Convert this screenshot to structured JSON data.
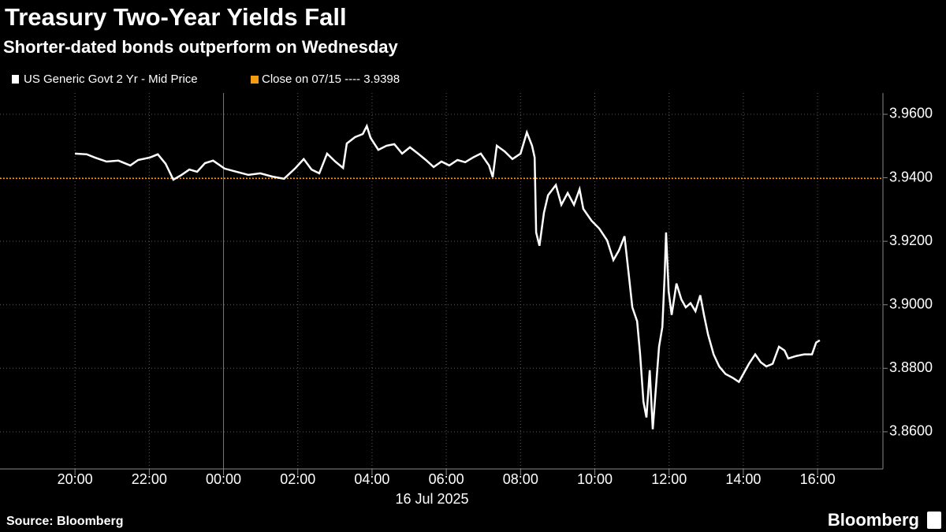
{
  "chart_data": {
    "type": "line",
    "title": "Treasury Two-Year Yields Fall",
    "subtitle": "Shorter-dated bonds outperform on Wednesday",
    "x_label": "16 Jul 2025",
    "source": "Source: Bloomberg",
    "brand": "Bloomberg",
    "grid": true,
    "x": [
      -4.0,
      -3.68,
      -3.47,
      -3.15,
      -2.83,
      -2.51,
      -2.3,
      -1.98,
      -1.77,
      -1.56,
      -1.35,
      -1.13,
      -0.92,
      -0.71,
      -0.5,
      -0.28,
      0.03,
      0.35,
      0.67,
      0.99,
      1.31,
      1.63,
      1.94,
      2.16,
      2.37,
      2.58,
      2.79,
      3.01,
      3.22,
      3.32,
      3.54,
      3.75,
      3.86,
      3.96,
      4.17,
      4.39,
      4.6,
      4.81,
      5.02,
      5.24,
      5.45,
      5.66,
      5.87,
      6.08,
      6.3,
      6.51,
      6.72,
      6.93,
      7.15,
      7.25,
      7.36,
      7.57,
      7.78,
      8.0,
      8.17,
      8.31,
      8.38,
      8.42,
      8.51,
      8.63,
      8.74,
      8.95,
      9.1,
      9.27,
      9.44,
      9.59,
      9.69,
      9.91,
      10.12,
      10.33,
      10.5,
      10.65,
      10.8,
      10.93,
      11.01,
      11.14,
      11.22,
      11.31,
      11.39,
      11.48,
      11.56,
      11.65,
      11.73,
      11.82,
      11.88,
      11.92,
      11.99,
      12.07,
      12.2,
      12.33,
      12.45,
      12.58,
      12.71,
      12.84,
      12.94,
      13.05,
      13.2,
      13.35,
      13.52,
      13.73,
      13.88,
      14.0,
      14.15,
      14.32,
      14.47,
      14.62,
      14.79,
      14.96,
      15.11,
      15.21,
      15.43,
      15.64,
      15.85,
      15.96,
      16.06
    ],
    "series": [
      {
        "name": "US Generic Govt 2 Yr - Mid Price",
        "color": "#ffffff",
        "values": [
          3.9476,
          3.9474,
          3.9464,
          3.9451,
          3.9454,
          3.9439,
          3.9456,
          3.9464,
          3.9474,
          3.9444,
          3.9394,
          3.9409,
          3.9426,
          3.9419,
          3.9446,
          3.9454,
          3.9429,
          3.9419,
          3.9409,
          3.9414,
          3.9404,
          3.9397,
          3.9431,
          3.9459,
          3.9426,
          3.9414,
          3.9476,
          3.9451,
          3.9431,
          3.9508,
          3.9528,
          3.9538,
          3.9563,
          3.9526,
          3.9488,
          3.9501,
          3.9506,
          3.9476,
          3.9496,
          3.9476,
          3.9456,
          3.9434,
          3.9451,
          3.9439,
          3.9456,
          3.9449,
          3.9464,
          3.9476,
          3.9439,
          3.9402,
          3.9501,
          3.9483,
          3.9459,
          3.9476,
          3.9543,
          3.9501,
          3.9464,
          3.9228,
          3.9186,
          3.929,
          3.9345,
          3.9377,
          3.9315,
          3.9352,
          3.9315,
          3.9364,
          3.9302,
          3.9265,
          3.924,
          3.9203,
          3.9141,
          3.9171,
          3.9216,
          3.9079,
          3.8992,
          3.8948,
          3.8844,
          3.8695,
          3.8645,
          3.8794,
          3.8608,
          3.8744,
          3.8868,
          3.893,
          3.9092,
          3.9228,
          3.9042,
          3.8968,
          3.9067,
          3.9017,
          3.8992,
          3.9005,
          3.898,
          3.903,
          3.8968,
          3.8906,
          3.8844,
          3.8806,
          3.8782,
          3.8769,
          3.8757,
          3.8782,
          3.8814,
          3.8844,
          3.8819,
          3.8806,
          3.8814,
          3.8868,
          3.8856,
          3.8831,
          3.8839,
          3.8844,
          3.8844,
          3.8881,
          3.8888
        ]
      }
    ],
    "reference_line": {
      "label": "Close on 07/15 ---- 3.9398",
      "value": 3.9398,
      "color": "#f39c12"
    },
    "xlim": [
      -6.02,
      17.76
    ],
    "xticks": [
      {
        "value": -4,
        "label": "20:00"
      },
      {
        "value": -2,
        "label": "22:00"
      },
      {
        "value": 0,
        "label": "00:00"
      },
      {
        "value": 2,
        "label": "02:00"
      },
      {
        "value": 4,
        "label": "04:00"
      },
      {
        "value": 6,
        "label": "06:00"
      },
      {
        "value": 8,
        "label": "08:00"
      },
      {
        "value": 10,
        "label": "10:00"
      },
      {
        "value": 12,
        "label": "12:00"
      },
      {
        "value": 14,
        "label": "14:00"
      },
      {
        "value": 16,
        "label": "16:00"
      }
    ],
    "ylim": [
      3.8483,
      3.9667
    ],
    "yticks": [
      {
        "value": 3.86,
        "label": "3.8600"
      },
      {
        "value": 3.88,
        "label": "3.8800"
      },
      {
        "value": 3.9,
        "label": "3.9000"
      },
      {
        "value": 3.92,
        "label": "3.9200"
      },
      {
        "value": 3.94,
        "label": "3.9400"
      },
      {
        "value": 3.96,
        "label": "3.9600"
      }
    ]
  }
}
